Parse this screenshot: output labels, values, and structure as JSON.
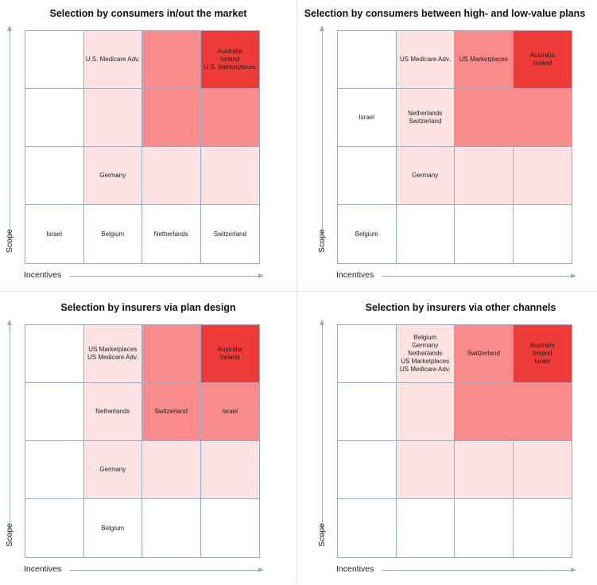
{
  "axes": {
    "x_label": "Incentives",
    "y_label": "Scope"
  },
  "colors": {
    "level0": "#ffffff",
    "level1": "#fde4e3",
    "level2": "#f98c8a",
    "level3": "#ee3b37",
    "grid_line": "#8fb0d4"
  },
  "panels": [
    {
      "title": "Selection by consumers in/out the market",
      "cells": [
        {
          "text": "",
          "level": 0
        },
        {
          "text": "U.S. Medicare Adv.",
          "level": 1
        },
        {
          "text": "",
          "level": 2
        },
        {
          "text": "Australia\nIreland\nU.S. Marketplaces",
          "level": 3
        },
        {
          "text": "",
          "level": 0
        },
        {
          "text": "",
          "level": 1
        },
        {
          "text": "",
          "level": 2
        },
        {
          "text": "",
          "level": 2
        },
        {
          "text": "",
          "level": 0
        },
        {
          "text": "Germany",
          "level": 1
        },
        {
          "text": "",
          "level": 1
        },
        {
          "text": "",
          "level": 1
        },
        {
          "text": "Israel",
          "level": 0
        },
        {
          "text": "Belgium",
          "level": 0
        },
        {
          "text": "Netherlands",
          "level": 0
        },
        {
          "text": "Switzerland",
          "level": 0
        }
      ]
    },
    {
      "title": "Selection by consumers between high- and low-value plans",
      "cells": [
        {
          "text": "",
          "level": 0
        },
        {
          "text": "US Medicare Adv.",
          "level": 1
        },
        {
          "text": "US Marketplaces",
          "level": 2
        },
        {
          "text": "Australia\nIreland",
          "level": 3
        },
        {
          "text": "Israel",
          "level": 0
        },
        {
          "text": "Netherlands\nSwitzerland",
          "level": 1
        },
        {
          "text": "",
          "level": 2
        },
        {
          "text": "",
          "level": 2
        },
        {
          "text": "",
          "level": 0
        },
        {
          "text": "Germany",
          "level": 1
        },
        {
          "text": "",
          "level": 1
        },
        {
          "text": "",
          "level": 1
        },
        {
          "text": "Belgium",
          "level": 0
        },
        {
          "text": "",
          "level": 0
        },
        {
          "text": "",
          "level": 0
        },
        {
          "text": "",
          "level": 0
        }
      ]
    },
    {
      "title": "Selection by insurers via plan design",
      "cells": [
        {
          "text": "",
          "level": 0
        },
        {
          "text": "US Marketplaces\nUS Medicare Adv.",
          "level": 1
        },
        {
          "text": "",
          "level": 2
        },
        {
          "text": "Australia\nIreland",
          "level": 3
        },
        {
          "text": "",
          "level": 0
        },
        {
          "text": "Netherlands",
          "level": 1
        },
        {
          "text": "Switzerland",
          "level": 2
        },
        {
          "text": "Israel",
          "level": 2
        },
        {
          "text": "",
          "level": 0
        },
        {
          "text": "Germany",
          "level": 1
        },
        {
          "text": "",
          "level": 1
        },
        {
          "text": "",
          "level": 1
        },
        {
          "text": "",
          "level": 0
        },
        {
          "text": "Belgium",
          "level": 0
        },
        {
          "text": "",
          "level": 0
        },
        {
          "text": "",
          "level": 0
        }
      ]
    },
    {
      "title": "Selection by insurers via other channels",
      "cells": [
        {
          "text": "",
          "level": 0
        },
        {
          "text": "Belgium\nGermany\nNetherlands\nUS Marketplaces\nUS Medicare Adv.",
          "level": 1
        },
        {
          "text": "Switzerland",
          "level": 2
        },
        {
          "text": "Australia\nIreland\nIsrael",
          "level": 3
        },
        {
          "text": "",
          "level": 0
        },
        {
          "text": "",
          "level": 1
        },
        {
          "text": "",
          "level": 2
        },
        {
          "text": "",
          "level": 2
        },
        {
          "text": "",
          "level": 0
        },
        {
          "text": "",
          "level": 1
        },
        {
          "text": "",
          "level": 1
        },
        {
          "text": "",
          "level": 1
        },
        {
          "text": "",
          "level": 0
        },
        {
          "text": "",
          "level": 0
        },
        {
          "text": "",
          "level": 0
        },
        {
          "text": "",
          "level": 0
        }
      ]
    }
  ]
}
